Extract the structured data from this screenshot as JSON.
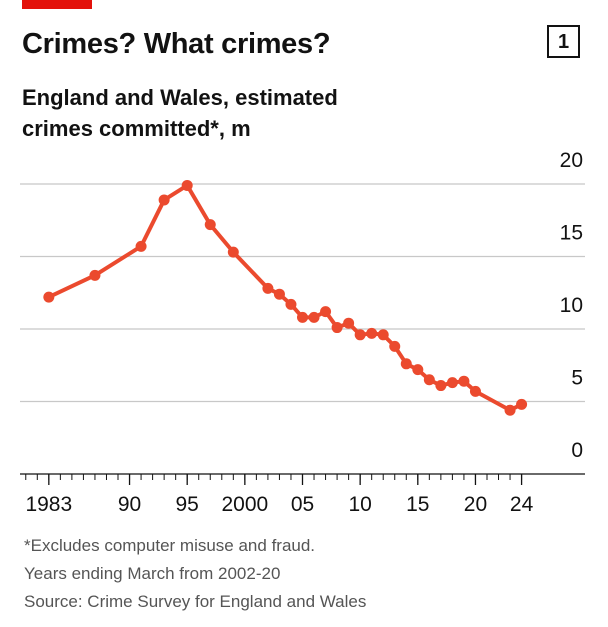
{
  "chart_data": {
    "type": "line",
    "title": "Crimes? What crimes?",
    "chart_number": "1",
    "subtitle": "England and Wales, estimated crimes committed*, m",
    "notes": [
      "*Excludes computer misuse and fraud.",
      "Years ending March from 2002-20",
      "Source: Crime Survey for England and Wales"
    ],
    "x": [
      1983,
      1987,
      1991,
      1993,
      1995,
      1997,
      1999,
      2002,
      2003,
      2004,
      2005,
      2006,
      2007,
      2008,
      2009,
      2010,
      2011,
      2012,
      2013,
      2014,
      2015,
      2016,
      2017,
      2018,
      2019,
      2020,
      2023,
      2024
    ],
    "series": [
      {
        "name": "Crimes committed",
        "color": "#eb4a2e",
        "values": [
          12.2,
          13.7,
          15.7,
          18.9,
          19.9,
          17.2,
          15.3,
          12.8,
          12.4,
          11.7,
          10.8,
          10.8,
          11.2,
          10.1,
          10.4,
          9.6,
          9.7,
          9.6,
          8.8,
          7.6,
          7.2,
          6.5,
          6.1,
          6.3,
          6.4,
          5.7,
          4.4,
          4.8
        ]
      }
    ],
    "xlim": [
      1980.5,
      2029.5
    ],
    "xticks": [
      1983,
      {
        "value": 1990,
        "label": "90"
      },
      {
        "value": 1995,
        "label": "95"
      },
      2000,
      {
        "value": 2005,
        "label": "05"
      },
      {
        "value": 2010,
        "label": "10"
      },
      {
        "value": 2015,
        "label": "15"
      },
      {
        "value": 2020,
        "label": "20"
      },
      {
        "value": 2024,
        "label": "24"
      }
    ],
    "ylim": [
      0,
      20
    ],
    "yticks": [
      0,
      5,
      10,
      15,
      20
    ],
    "grid": true
  }
}
